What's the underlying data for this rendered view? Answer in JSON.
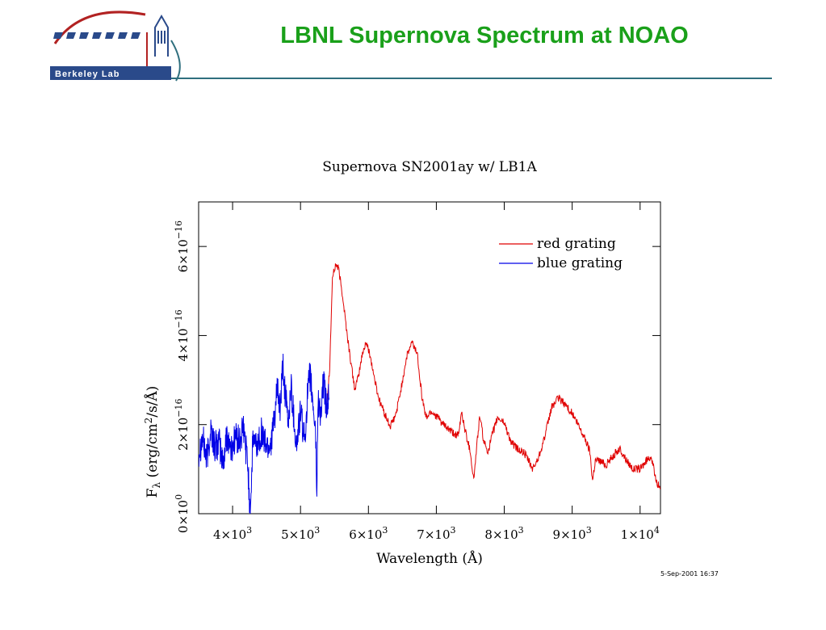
{
  "header": {
    "logo_text": "Berkeley Lab",
    "title": "LBNL Supernova Spectrum at NOAO"
  },
  "colors": {
    "title": "#1aa01a",
    "rule": "#2f6f7e",
    "red_series": "#e00000",
    "blue_series": "#0000e6"
  },
  "chart_data": {
    "type": "line",
    "title": "Supernova SN2001ay w/ LB1A",
    "xlabel": "Wavelength (Å)",
    "ylabel": "Fλ (erg/cm²/s/Å)",
    "xlim": [
      3500,
      10300
    ],
    "ylim": [
      0,
      7e-16
    ],
    "x_ticks": [
      4000,
      5000,
      6000,
      7000,
      8000,
      9000,
      10000
    ],
    "x_tick_labels": [
      {
        "m": "4×10",
        "e": "3"
      },
      {
        "m": "5×10",
        "e": "3"
      },
      {
        "m": "6×10",
        "e": "3"
      },
      {
        "m": "7×10",
        "e": "3"
      },
      {
        "m": "8×10",
        "e": "3"
      },
      {
        "m": "9×10",
        "e": "3"
      },
      {
        "m": "1×10",
        "e": "4"
      }
    ],
    "y_ticks": [
      0,
      2e-16,
      4e-16,
      6e-16
    ],
    "y_tick_labels": [
      {
        "m": "0×10",
        "e": "0"
      },
      {
        "m": "2×10",
        "e": "−16"
      },
      {
        "m": "4×10",
        "e": "−16"
      },
      {
        "m": "6×10",
        "e": "−16"
      }
    ],
    "legend_position": "top-right",
    "series": [
      {
        "name": "red grating",
        "color": "#e00000",
        "points": [
          [
            5380,
            2.3e-16
          ],
          [
            5430,
            3.3e-16
          ],
          [
            5470,
            5.3e-16
          ],
          [
            5520,
            5.6e-16
          ],
          [
            5560,
            5.5e-16
          ],
          [
            5620,
            4.9e-16
          ],
          [
            5680,
            4.1e-16
          ],
          [
            5750,
            3.3e-16
          ],
          [
            5800,
            2.8e-16
          ],
          [
            5850,
            3.05e-16
          ],
          [
            5900,
            3.5e-16
          ],
          [
            5960,
            3.85e-16
          ],
          [
            6020,
            3.6e-16
          ],
          [
            6080,
            3.1e-16
          ],
          [
            6150,
            2.6e-16
          ],
          [
            6250,
            2.2e-16
          ],
          [
            6320,
            1.95e-16
          ],
          [
            6400,
            2.2e-16
          ],
          [
            6480,
            2.8e-16
          ],
          [
            6560,
            3.5e-16
          ],
          [
            6640,
            3.85e-16
          ],
          [
            6720,
            3.6e-16
          ],
          [
            6790,
            2.6e-16
          ],
          [
            6850,
            2.15e-16
          ],
          [
            6920,
            2.3e-16
          ],
          [
            7000,
            2.2e-16
          ],
          [
            7100,
            2e-16
          ],
          [
            7250,
            1.8e-16
          ],
          [
            7330,
            1.75e-16
          ],
          [
            7370,
            2.3e-16
          ],
          [
            7420,
            1.9e-16
          ],
          [
            7500,
            1.4e-16
          ],
          [
            7550,
            7.5e-17
          ],
          [
            7600,
            1.6e-16
          ],
          [
            7640,
            2.2e-16
          ],
          [
            7700,
            1.6e-16
          ],
          [
            7760,
            1.4e-16
          ],
          [
            7820,
            1.75e-16
          ],
          [
            7900,
            2.15e-16
          ],
          [
            8000,
            2.05e-16
          ],
          [
            8100,
            1.6e-16
          ],
          [
            8200,
            1.45e-16
          ],
          [
            8300,
            1.35e-16
          ],
          [
            8420,
            1e-16
          ],
          [
            8500,
            1.25e-16
          ],
          [
            8600,
            1.75e-16
          ],
          [
            8700,
            2.4e-16
          ],
          [
            8800,
            2.6e-16
          ],
          [
            8900,
            2.45e-16
          ],
          [
            9000,
            2.25e-16
          ],
          [
            9100,
            1.95e-16
          ],
          [
            9200,
            1.65e-16
          ],
          [
            9260,
            1.4e-16
          ],
          [
            9300,
            7.5e-17
          ],
          [
            9340,
            1.2e-16
          ],
          [
            9400,
            1.2e-16
          ],
          [
            9500,
            1.1e-16
          ],
          [
            9600,
            1.3e-16
          ],
          [
            9700,
            1.45e-16
          ],
          [
            9800,
            1.2e-16
          ],
          [
            9900,
            1e-16
          ],
          [
            10000,
            1e-16
          ],
          [
            10100,
            1.2e-16
          ],
          [
            10160,
            1.3e-16
          ],
          [
            10200,
            1e-16
          ],
          [
            10250,
            7e-17
          ],
          [
            10300,
            5.5e-17
          ]
        ]
      },
      {
        "name": "blue grating",
        "color": "#0000e6",
        "points": [
          [
            3500,
            1.4e-16
          ],
          [
            3560,
            1.7e-16
          ],
          [
            3620,
            1.2e-16
          ],
          [
            3680,
            1.9e-16
          ],
          [
            3740,
            1.5e-16
          ],
          [
            3800,
            1.6e-16
          ],
          [
            3860,
            1.1e-16
          ],
          [
            3920,
            1.8e-16
          ],
          [
            3980,
            1.4e-16
          ],
          [
            4040,
            1.75e-16
          ],
          [
            4100,
            1.6e-16
          ],
          [
            4160,
            1.9e-16
          ],
          [
            4220,
            1.2e-16
          ],
          [
            4260,
            0.0
          ],
          [
            4300,
            1.7e-16
          ],
          [
            4360,
            1.5e-16
          ],
          [
            4420,
            1.85e-16
          ],
          [
            4480,
            1.6e-16
          ],
          [
            4540,
            1.5e-16
          ],
          [
            4600,
            1.9e-16
          ],
          [
            4660,
            2.8e-16
          ],
          [
            4700,
            2.3e-16
          ],
          [
            4740,
            3.3e-16
          ],
          [
            4780,
            2.6e-16
          ],
          [
            4820,
            2e-16
          ],
          [
            4860,
            2.9e-16
          ],
          [
            4900,
            2.2e-16
          ],
          [
            4940,
            1.5e-16
          ],
          [
            5000,
            2.3e-16
          ],
          [
            5060,
            1.6e-16
          ],
          [
            5100,
            2.6e-16
          ],
          [
            5140,
            3.1e-16
          ],
          [
            5180,
            2.5e-16
          ],
          [
            5220,
            1.9e-16
          ],
          [
            5240,
            5e-17
          ],
          [
            5260,
            2.6e-16
          ],
          [
            5300,
            2.2e-16
          ],
          [
            5340,
            3e-16
          ],
          [
            5380,
            2.4e-16
          ],
          [
            5420,
            2.6e-16
          ]
        ]
      }
    ]
  },
  "footer": {
    "timestamp": "5-Sep-2001 16:37"
  }
}
